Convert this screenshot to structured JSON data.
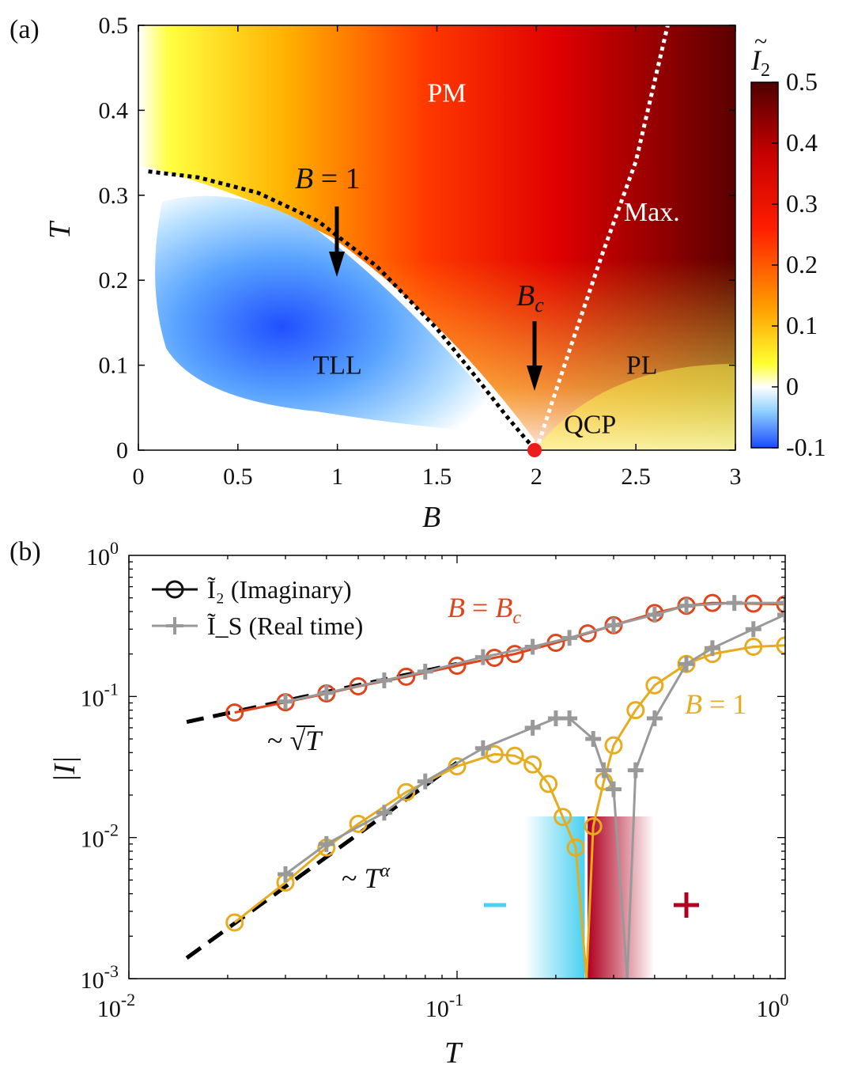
{
  "chart_data": [
    {
      "type": "heatmap",
      "panel_label": "(a)",
      "xlabel": "B",
      "ylabel": "T",
      "xlim": [
        0,
        3
      ],
      "ylim": [
        0,
        0.5
      ],
      "xticks": [
        "0",
        "0.5",
        "1",
        "1.5",
        "2",
        "2.5",
        "3"
      ],
      "yticks": [
        "0",
        "0.1",
        "0.2",
        "0.3",
        "0.4",
        "0.5"
      ],
      "colorbar": {
        "title": "Ĩ₂",
        "range": [
          -0.1,
          0.5
        ],
        "ticks": [
          "-0.1",
          "0",
          "0.1",
          "0.2",
          "0.3",
          "0.4",
          "0.5"
        ],
        "colors": [
          "#1a4bff",
          "#bfe6ff",
          "#ffffff",
          "#ffff30",
          "#ffa000",
          "#ff1e00",
          "#c80000",
          "#500000"
        ]
      },
      "regions": [
        {
          "label": "PM",
          "B": 1.55,
          "T": 0.41,
          "color": "#ffffff"
        },
        {
          "label": "TLL",
          "B": 1.0,
          "T": 0.09,
          "color": "#111111"
        },
        {
          "label": "Max.",
          "B": 2.58,
          "T": 0.27,
          "color": "#ffffff"
        },
        {
          "label": "PL",
          "B": 2.53,
          "T": 0.09,
          "color": "#111111"
        },
        {
          "label": "QCP",
          "B": 2.27,
          "T": 0.02,
          "color": "#111111"
        }
      ],
      "annotations": [
        {
          "label": "B = 1",
          "B": 1.0,
          "T_from": 0.29,
          "T_to": 0.2,
          "text_T": 0.31
        },
        {
          "label": "Bc",
          "B": 2.0,
          "T_from": 0.15,
          "T_to": 0.07,
          "text_T": 0.17
        }
      ],
      "crossover_lines": [
        {
          "name": "TLL boundary (black dotted)",
          "points": [
            [
              0.05,
              0.328
            ],
            [
              0.3,
              0.321
            ],
            [
              0.6,
              0.303
            ],
            [
              0.9,
              0.27
            ],
            [
              1.2,
              0.216
            ],
            [
              1.5,
              0.143
            ],
            [
              1.7,
              0.085
            ],
            [
              1.85,
              0.04
            ],
            [
              1.95,
              0.012
            ],
            [
              2.0,
              0.0
            ]
          ]
        },
        {
          "name": "Max. line (white dotted)",
          "points": [
            [
              2.0,
              0.0
            ],
            [
              2.07,
              0.05
            ],
            [
              2.17,
              0.12
            ],
            [
              2.33,
              0.23
            ],
            [
              2.5,
              0.34
            ],
            [
              2.66,
              0.5
            ]
          ]
        }
      ],
      "qcp_point": {
        "B": 2.0,
        "T": 0.0
      }
    },
    {
      "type": "line",
      "panel_label": "(b)",
      "xscale": "log",
      "yscale": "log",
      "xlabel": "T",
      "ylabel": "|Ĩ|",
      "xlim": [
        0.01,
        1
      ],
      "ylim": [
        0.001,
        1
      ],
      "xticks": [
        {
          "base": "10",
          "exp": "-2"
        },
        {
          "base": "10",
          "exp": "-1"
        },
        {
          "base": "10",
          "exp": "0"
        }
      ],
      "yticks": [
        {
          "base": "10",
          "exp": "-3"
        },
        {
          "base": "10",
          "exp": "-2"
        },
        {
          "base": "10",
          "exp": "-1"
        },
        {
          "base": "10",
          "exp": "0"
        }
      ],
      "legend": [
        {
          "label": "Ĩ₂ (Imaginary)",
          "marker": "circle",
          "color": "#111111"
        },
        {
          "label": "Ĩ_S (Real time)",
          "marker": "plus",
          "color": "#999999"
        }
      ],
      "series": [
        {
          "name": "Ĩ2, B = Bc",
          "color": "#e0441a",
          "marker": "circle",
          "T": [
            0.021,
            0.03,
            0.04,
            0.05,
            0.07,
            0.1,
            0.13,
            0.15,
            0.2,
            0.25,
            0.3,
            0.4,
            0.5,
            0.6,
            0.8,
            1.0
          ],
          "I": [
            0.077,
            0.091,
            0.105,
            0.118,
            0.138,
            0.165,
            0.188,
            0.2,
            0.24,
            0.28,
            0.32,
            0.39,
            0.44,
            0.46,
            0.455,
            0.45
          ]
        },
        {
          "name": "ĨS, B = Bc",
          "color": "#999999",
          "marker": "plus",
          "T": [
            0.03,
            0.04,
            0.06,
            0.08,
            0.12,
            0.17,
            0.22,
            0.3,
            0.4,
            0.5,
            0.7,
            1.0
          ],
          "I": [
            0.092,
            0.106,
            0.13,
            0.15,
            0.19,
            0.225,
            0.26,
            0.32,
            0.38,
            0.44,
            0.46,
            0.46
          ]
        },
        {
          "name": "Ĩ2, B = 1",
          "color": "#e6ac1e",
          "marker": "circle",
          "sign_change_T": 0.248,
          "T": [
            0.021,
            0.03,
            0.04,
            0.05,
            0.07,
            0.1,
            0.13,
            0.15,
            0.17,
            0.19,
            0.21,
            0.23,
            0.26,
            0.28,
            0.3,
            0.35,
            0.4,
            0.5,
            0.6,
            0.8,
            1.0
          ],
          "I": [
            0.0025,
            0.0048,
            0.0085,
            0.0125,
            0.021,
            0.032,
            0.039,
            0.038,
            0.033,
            0.024,
            0.014,
            0.0085,
            0.012,
            0.025,
            0.045,
            0.08,
            0.12,
            0.17,
            0.2,
            0.225,
            0.23
          ]
        },
        {
          "name": "ĨS, B = 1",
          "color": "#999999",
          "marker": "plus",
          "sign_change_T": 0.33,
          "T": [
            0.03,
            0.04,
            0.06,
            0.08,
            0.12,
            0.17,
            0.2,
            0.22,
            0.26,
            0.28,
            0.3,
            0.35,
            0.4,
            0.5,
            0.6,
            0.8,
            1.0
          ],
          "I": [
            0.0055,
            0.009,
            0.015,
            0.025,
            0.043,
            0.06,
            0.07,
            0.07,
            0.05,
            0.03,
            0.022,
            0.03,
            0.07,
            0.17,
            0.22,
            0.3,
            0.38
          ]
        }
      ],
      "fits": [
        {
          "label": "~ √T",
          "T": [
            0.015,
            0.1
          ],
          "I": [
            0.066,
            0.17
          ]
        },
        {
          "label": "~ Tᵅ",
          "T": [
            0.015,
            0.1
          ],
          "I": [
            0.0014,
            0.034
          ]
        }
      ],
      "sign_regions": [
        {
          "label": "–",
          "color": "#4ad0f0",
          "T_from": 0.16,
          "T_to": 0.245
        },
        {
          "label": "+",
          "color": "#b00020",
          "T_from": 0.25,
          "T_to": 0.4
        }
      ]
    }
  ]
}
